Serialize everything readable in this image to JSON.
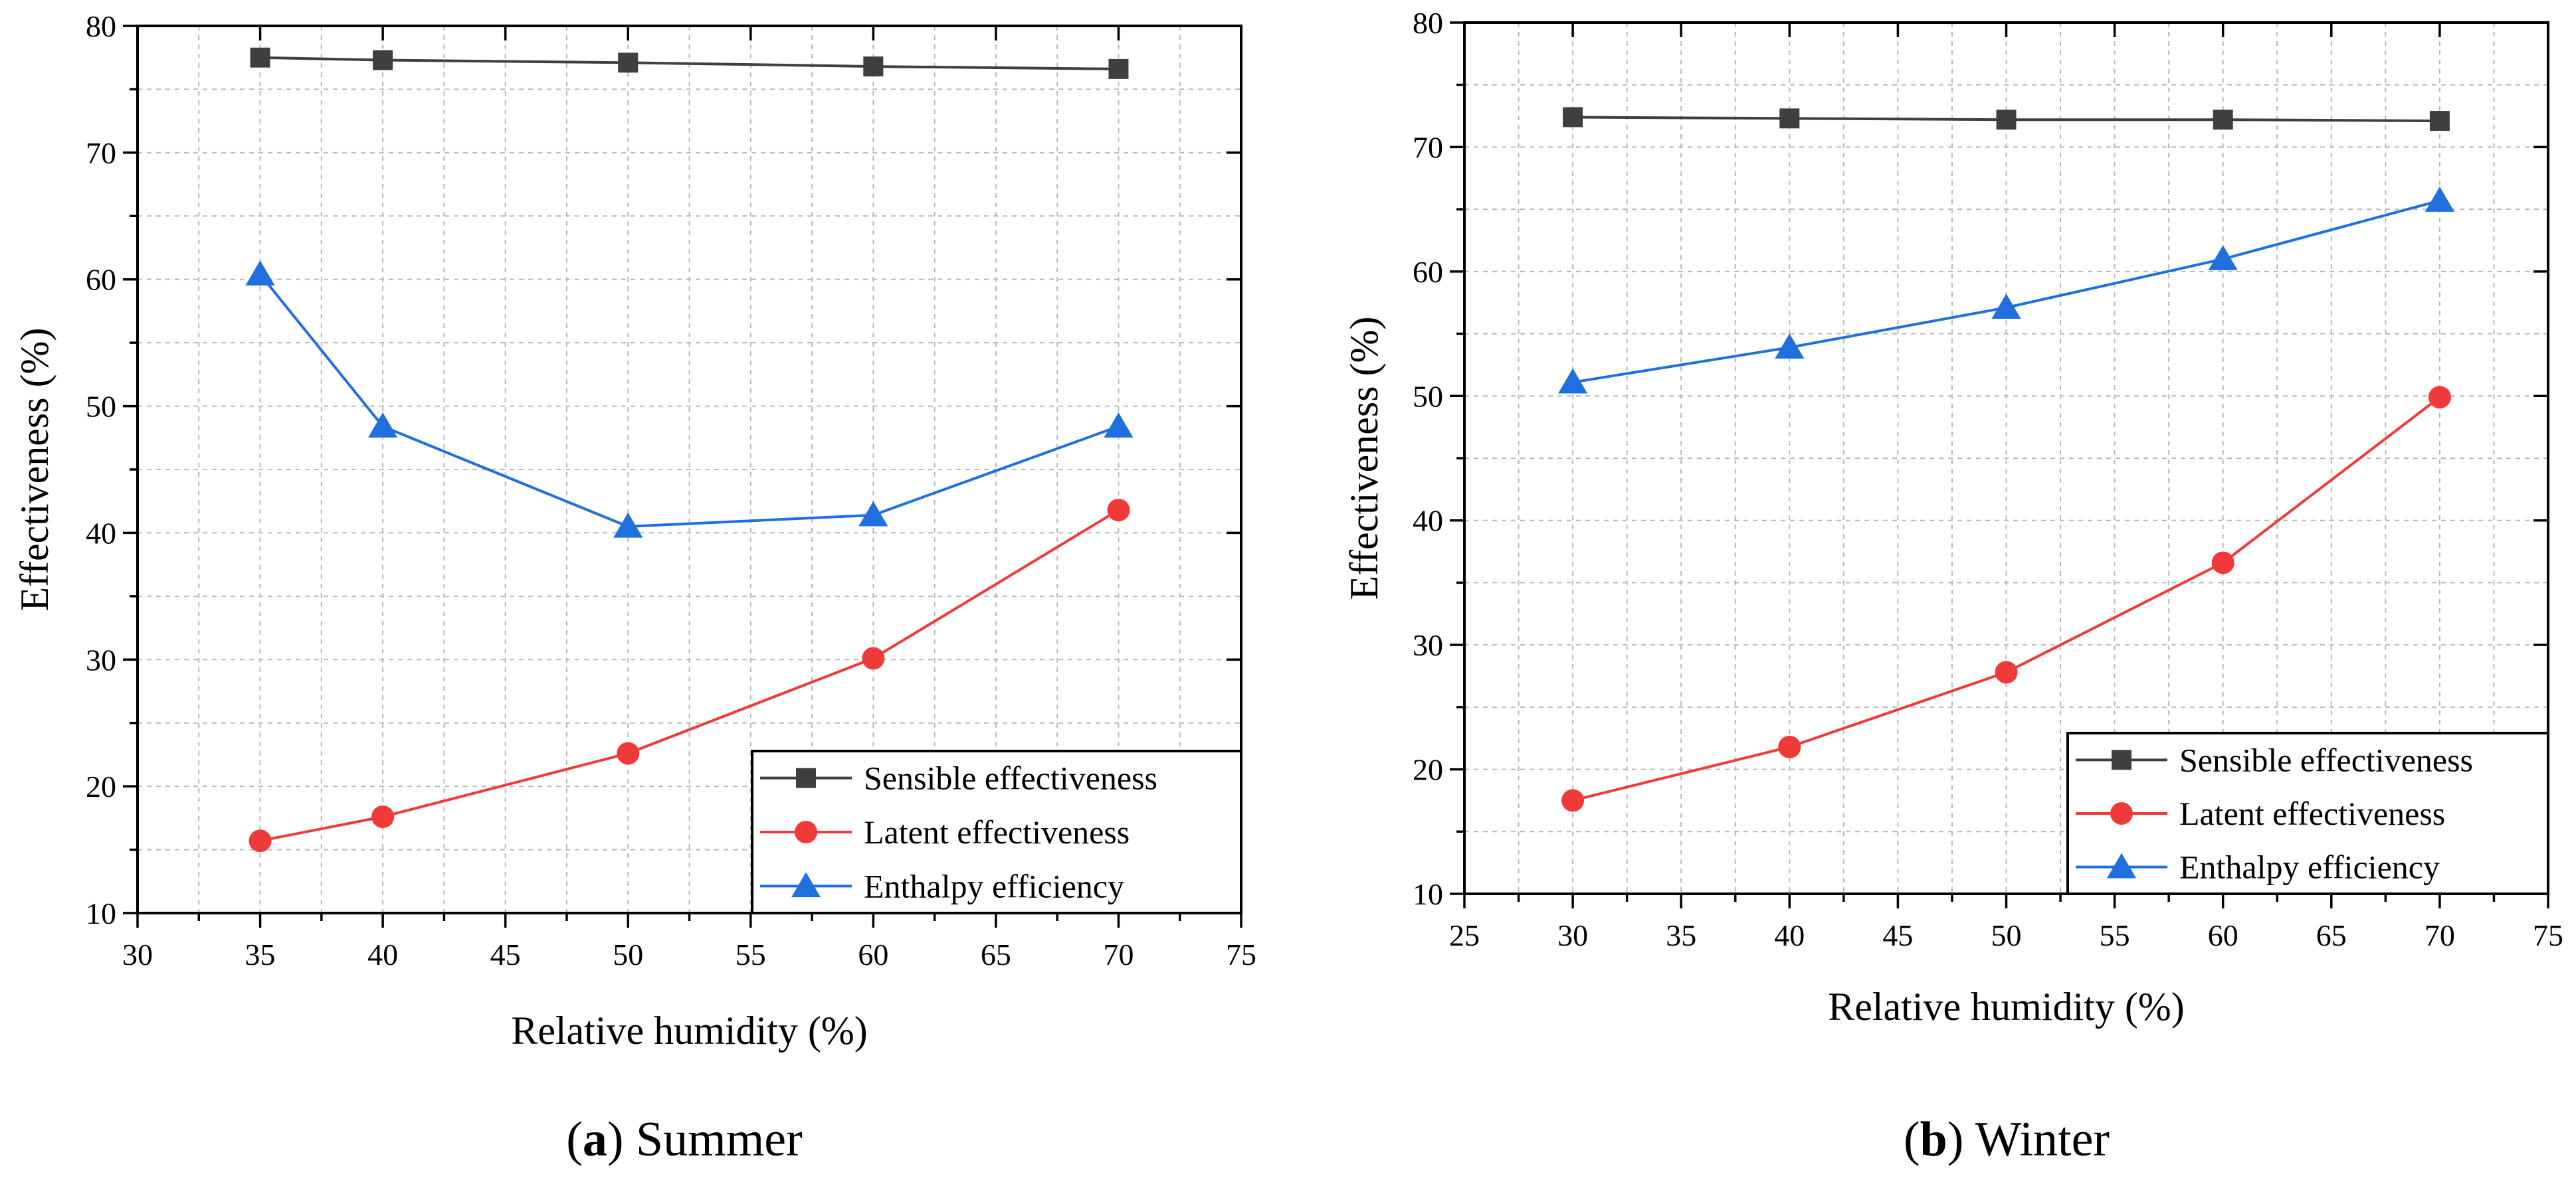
{
  "chart_data": [
    {
      "type": "line",
      "caption_letter": "a",
      "caption_text": "Summer",
      "xlabel": "Relative humidity (%)",
      "ylabel": "Effectiveness (%)",
      "xlim": [
        30,
        75
      ],
      "ylim": [
        10,
        80
      ],
      "xticks": [
        30,
        35,
        40,
        45,
        50,
        55,
        60,
        65,
        70,
        75
      ],
      "yticks": [
        10,
        20,
        30,
        40,
        50,
        60,
        70,
        80
      ],
      "grid": true,
      "legend_position": "bottom-right",
      "x": [
        35,
        40,
        50,
        60,
        70
      ],
      "series": [
        {
          "name": "Sensible effectiveness",
          "color": "#3f3f3f",
          "marker": "square",
          "values": [
            77.5,
            77.3,
            77.1,
            76.8,
            76.6
          ]
        },
        {
          "name": "Latent effectiveness",
          "color": "#f03a3a",
          "marker": "circle",
          "values": [
            15.7,
            17.6,
            22.6,
            30.1,
            41.8
          ]
        },
        {
          "name": "Enthalpy efficiency",
          "color": "#1f6fdc",
          "marker": "triangle",
          "values": [
            60.4,
            48.4,
            40.5,
            41.4,
            48.4
          ]
        }
      ]
    },
    {
      "type": "line",
      "caption_letter": "b",
      "caption_text": "Winter",
      "xlabel": "Relative humidity (%)",
      "ylabel": "Effectiveness (%)",
      "xlim": [
        25,
        75
      ],
      "ylim": [
        10,
        80
      ],
      "xticks": [
        25,
        30,
        35,
        40,
        45,
        50,
        55,
        60,
        65,
        70,
        75
      ],
      "yticks": [
        10,
        20,
        30,
        40,
        50,
        60,
        70,
        80
      ],
      "grid": true,
      "legend_position": "bottom-right",
      "x": [
        30,
        40,
        50,
        60,
        70
      ],
      "series": [
        {
          "name": "Sensible effectiveness",
          "color": "#3f3f3f",
          "marker": "square",
          "values": [
            72.4,
            72.3,
            72.2,
            72.2,
            72.1
          ]
        },
        {
          "name": "Latent effectiveness",
          "color": "#f03a3a",
          "marker": "circle",
          "values": [
            17.5,
            21.8,
            27.8,
            36.6,
            49.9
          ]
        },
        {
          "name": "Enthalpy efficiency",
          "color": "#1f6fdc",
          "marker": "triangle",
          "values": [
            51.1,
            53.9,
            57.1,
            61.0,
            65.7
          ]
        }
      ]
    }
  ]
}
